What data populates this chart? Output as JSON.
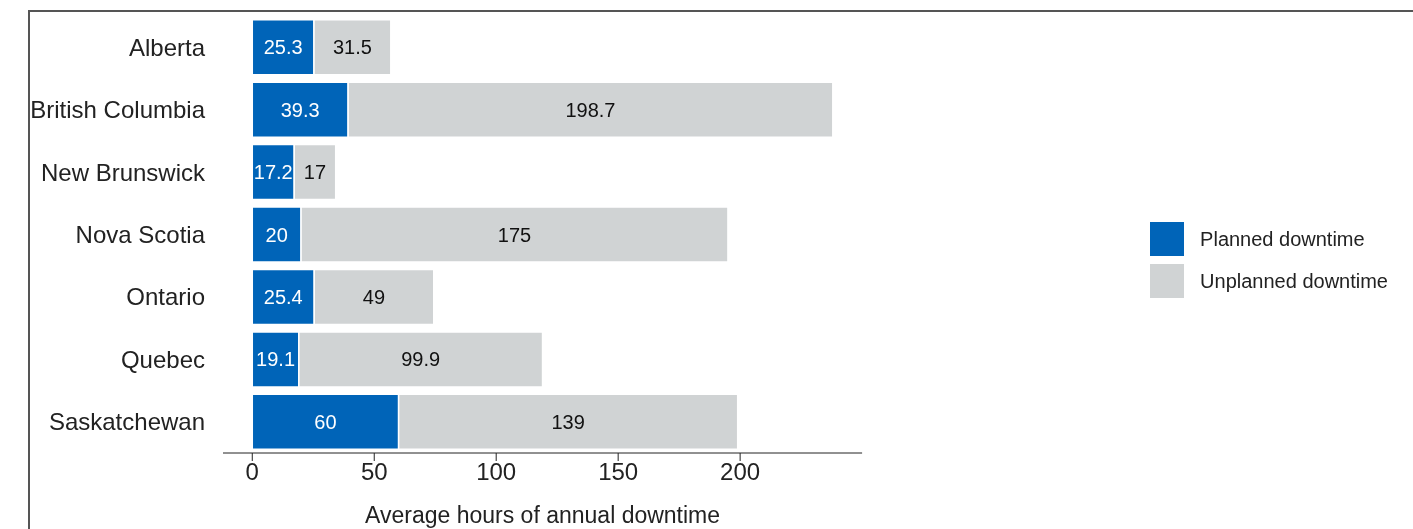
{
  "chart_data": {
    "type": "bar",
    "orientation": "horizontal",
    "stacked": true,
    "xlabel": "Average hours of annual downtime",
    "categories": [
      "Alberta",
      "British Columbia",
      "New Brunswick",
      "Nova Scotia",
      "Ontario",
      "Quebec",
      "Saskatchewan"
    ],
    "series": [
      {
        "name": "Planned downtime",
        "color": "#0064b8",
        "values": [
          25.3,
          39.3,
          17.2,
          20,
          25.4,
          19.1,
          60
        ]
      },
      {
        "name": "Unplanned downtime",
        "color": "#d0d3d4",
        "values": [
          31.5,
          198.7,
          17,
          175,
          49,
          99.9,
          139
        ]
      }
    ],
    "xlim": [
      -12,
      250
    ],
    "xticks": [
      0,
      50,
      100,
      150,
      200
    ],
    "data_labels": true,
    "grid": false,
    "legend": "right"
  }
}
